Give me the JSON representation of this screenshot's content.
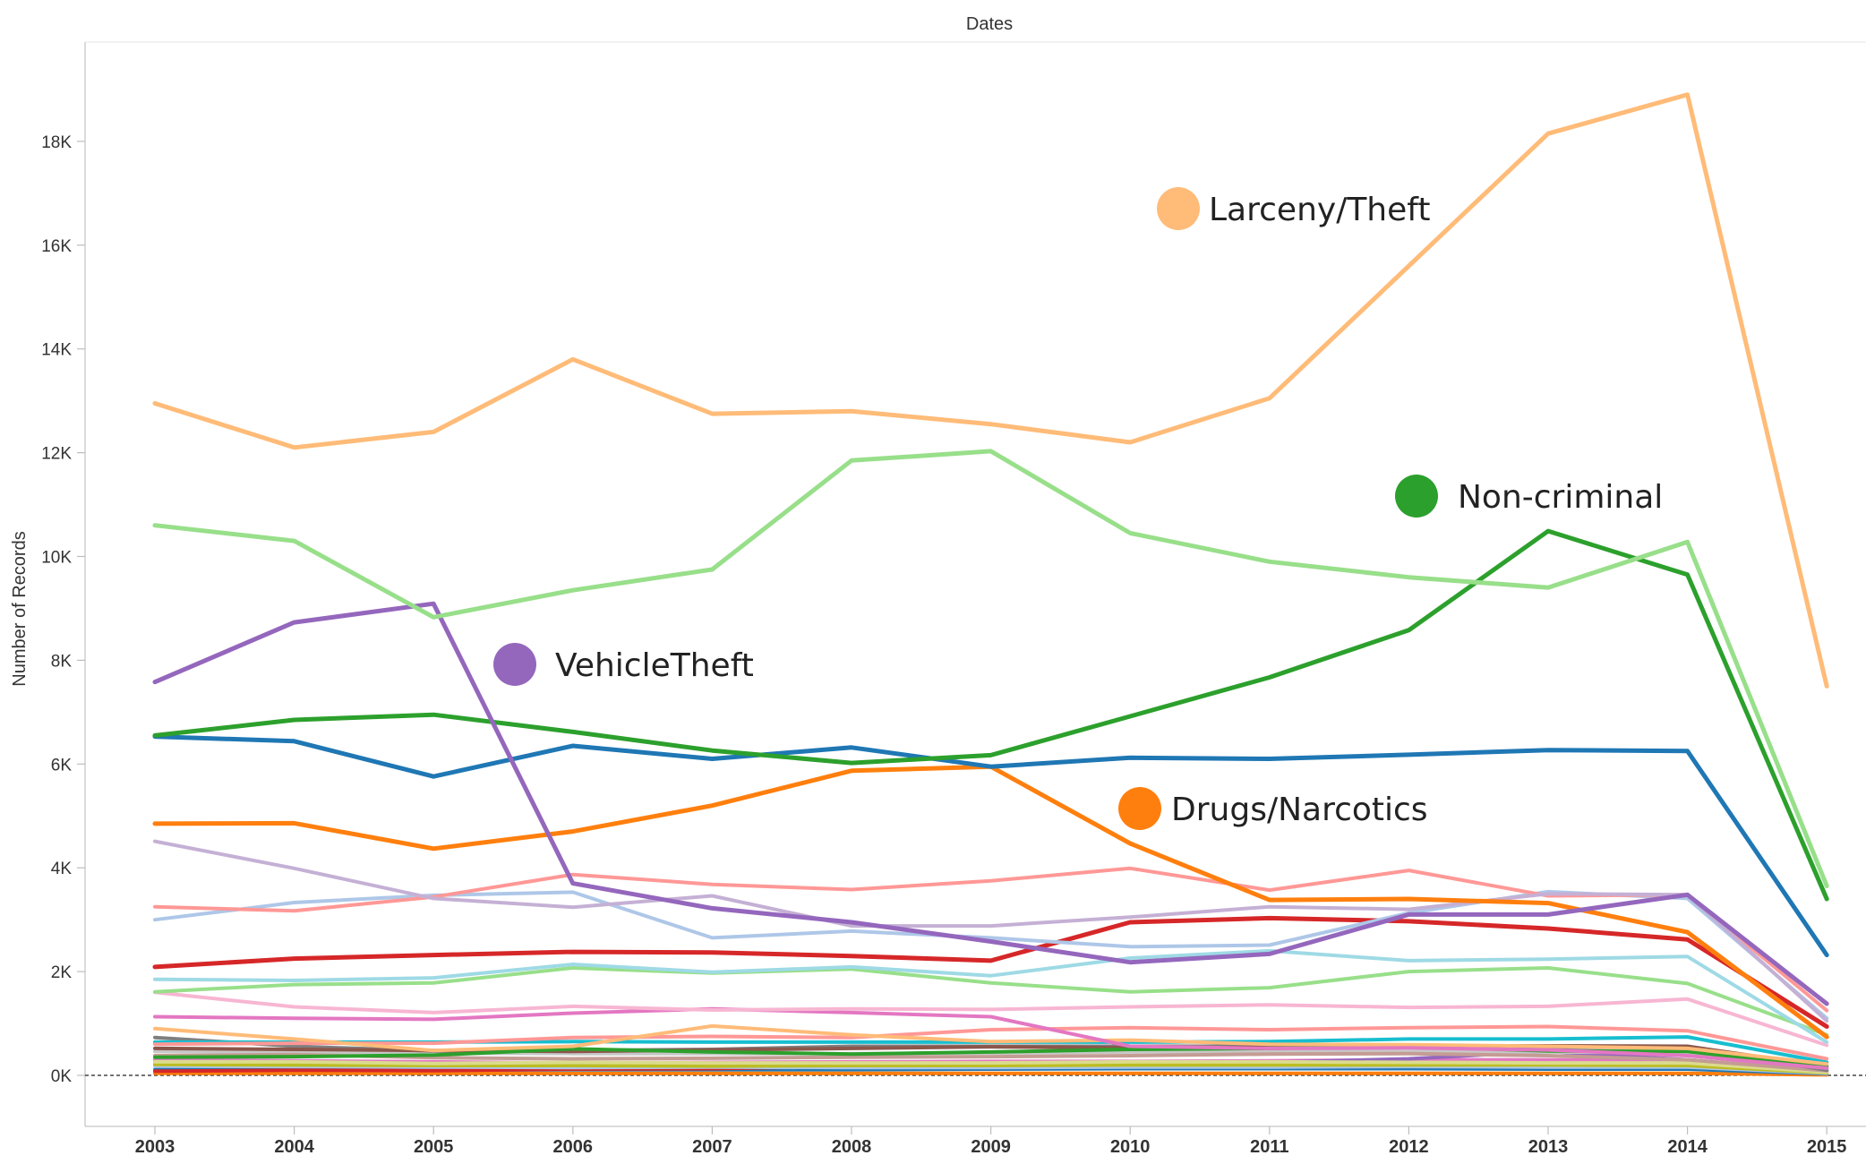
{
  "chart_data": {
    "type": "line",
    "title": "Dates",
    "xlabel": "",
    "ylabel": "Number of Records",
    "x": [
      "2003",
      "2004",
      "2005",
      "2006",
      "2007",
      "2008",
      "2009",
      "2010",
      "2011",
      "2012",
      "2013",
      "2014",
      "2015"
    ],
    "yticks": [
      "0K",
      "2K",
      "4K",
      "6K",
      "8K",
      "10K",
      "12K",
      "14K",
      "16K",
      "18K"
    ],
    "ylim": [
      -1000,
      19500
    ],
    "grid": false,
    "zero_line": "dashed",
    "series": [
      {
        "name": "Larceny/Theft",
        "color": "#ffbb78",
        "width": 5,
        "values": [
          12950,
          12100,
          12400,
          13800,
          12750,
          12800,
          12550,
          12200,
          13050,
          15600,
          18150,
          18900,
          7500
        ]
      },
      {
        "name": "",
        "color": "#98df8a",
        "width": 5,
        "values": [
          10600,
          10300,
          8830,
          9350,
          9750,
          11850,
          12030,
          10450,
          9900,
          9600,
          9400,
          10280,
          3650
        ]
      },
      {
        "name": "VehicleTheft",
        "color": "#9467bd",
        "width": 5,
        "values": [
          7580,
          8730,
          9090,
          3700,
          3220,
          2950,
          2580,
          2180,
          2340,
          3100,
          3100,
          3480,
          1380
        ]
      },
      {
        "name": "Non-criminal",
        "color": "#2ca02c",
        "width": 5,
        "values": [
          6550,
          6850,
          6950,
          6620,
          6260,
          6020,
          6170,
          6920,
          7670,
          8580,
          10490,
          9650,
          3400
        ]
      },
      {
        "name": "",
        "color": "#1f77b4",
        "width": 5,
        "values": [
          6530,
          6440,
          5760,
          6350,
          6100,
          6320,
          5950,
          6120,
          6100,
          6180,
          6270,
          6250,
          2320
        ]
      },
      {
        "name": "Drugs/Narcotics",
        "color": "#ff7f0e",
        "width": 5,
        "values": [
          4850,
          4860,
          4370,
          4700,
          5200,
          5870,
          5950,
          4470,
          3380,
          3400,
          3320,
          2760,
          740
        ]
      },
      {
        "name": "",
        "color": "#c5b0d5",
        "width": 4,
        "values": [
          4510,
          3990,
          3410,
          3240,
          3460,
          2880,
          2880,
          3050,
          3250,
          3200,
          3500,
          3480,
          1050
        ]
      },
      {
        "name": "",
        "color": "#ff9896",
        "width": 4,
        "values": [
          3250,
          3170,
          3440,
          3870,
          3680,
          3580,
          3750,
          3990,
          3570,
          3950,
          3460,
          3480,
          1250
        ]
      },
      {
        "name": "",
        "color": "#aec7e8",
        "width": 4,
        "values": [
          3000,
          3330,
          3470,
          3530,
          2650,
          2780,
          2650,
          2480,
          2510,
          3130,
          3540,
          3410,
          1100
        ]
      },
      {
        "name": "",
        "color": "#d62728",
        "width": 5,
        "values": [
          2090,
          2250,
          2320,
          2380,
          2370,
          2300,
          2210,
          2950,
          3030,
          2970,
          2830,
          2620,
          940
        ]
      },
      {
        "name": "",
        "color": "#9edae5",
        "width": 4,
        "values": [
          1850,
          1830,
          1880,
          2140,
          1990,
          2090,
          1920,
          2260,
          2400,
          2210,
          2240,
          2290,
          640
        ]
      },
      {
        "name": "",
        "color": "#98df8a",
        "width": 4,
        "values": [
          1610,
          1750,
          1780,
          2070,
          1970,
          2050,
          1780,
          1610,
          1690,
          2000,
          2070,
          1770,
          780
        ]
      },
      {
        "name": "",
        "color": "#f7b6d2",
        "width": 4,
        "values": [
          1600,
          1320,
          1210,
          1330,
          1260,
          1280,
          1270,
          1320,
          1360,
          1310,
          1330,
          1470,
          580
        ]
      },
      {
        "name": "",
        "color": "#e377c2",
        "width": 4,
        "values": [
          1130,
          1100,
          1080,
          1200,
          1280,
          1210,
          1130,
          560,
          520,
          530,
          490,
          380,
          140
        ]
      },
      {
        "name": "",
        "color": "#ffbb78",
        "width": 4,
        "values": [
          900,
          700,
          480,
          560,
          950,
          780,
          650,
          680,
          600,
          590,
          560,
          520,
          220
        ]
      },
      {
        "name": "",
        "color": "#ff9896",
        "width": 4,
        "values": [
          600,
          620,
          620,
          730,
          750,
          730,
          880,
          920,
          880,
          920,
          940,
          860,
          320
        ]
      },
      {
        "name": "",
        "color": "#17becf",
        "width": 4,
        "values": [
          640,
          640,
          640,
          650,
          640,
          640,
          640,
          640,
          650,
          700,
          700,
          740,
          250
        ]
      },
      {
        "name": "",
        "color": "#2ca02c",
        "width": 4,
        "values": [
          350,
          360,
          390,
          510,
          450,
          410,
          450,
          500,
          520,
          560,
          470,
          460,
          160
        ]
      },
      {
        "name": "",
        "color": "#8c564b",
        "width": 4,
        "values": [
          520,
          500,
          480,
          460,
          490,
          520,
          550,
          530,
          540,
          560,
          570,
          560,
          170
        ]
      },
      {
        "name": "",
        "color": "#7f7f7f",
        "width": 4,
        "values": [
          730,
          560,
          470,
          480,
          500,
          560,
          560,
          560,
          560,
          560,
          540,
          540,
          100
        ]
      },
      {
        "name": "",
        "color": "#c49c94",
        "width": 4,
        "values": [
          380,
          400,
          340,
          320,
          330,
          350,
          360,
          380,
          410,
          420,
          380,
          300,
          90
        ]
      },
      {
        "name": "",
        "color": "#c7c7c7",
        "width": 4,
        "values": [
          460,
          450,
          430,
          420,
          420,
          420,
          430,
          450,
          470,
          460,
          450,
          440,
          120
        ]
      },
      {
        "name": "",
        "color": "#dbdb8d",
        "width": 4,
        "values": [
          260,
          260,
          230,
          250,
          240,
          240,
          240,
          260,
          260,
          250,
          240,
          240,
          60
        ]
      },
      {
        "name": "",
        "color": "#bcbd22",
        "width": 4,
        "values": [
          210,
          200,
          190,
          190,
          180,
          190,
          190,
          200,
          200,
          200,
          200,
          190,
          50
        ]
      },
      {
        "name": "",
        "color": "#aec7e8",
        "width": 4,
        "values": [
          180,
          170,
          160,
          150,
          160,
          150,
          150,
          160,
          160,
          170,
          160,
          160,
          40
        ]
      },
      {
        "name": "",
        "color": "#9467bd",
        "width": 4,
        "values": [
          210,
          220,
          200,
          200,
          210,
          220,
          230,
          240,
          250,
          320,
          460,
          300,
          90
        ]
      },
      {
        "name": "",
        "color": "#e377c2",
        "width": 4,
        "values": [
          300,
          280,
          260,
          240,
          250,
          260,
          270,
          270,
          280,
          300,
          300,
          280,
          80
        ]
      },
      {
        "name": "",
        "color": "#d62728",
        "width": 4,
        "values": [
          80,
          100,
          90,
          120,
          130,
          180,
          230,
          250,
          260,
          280,
          280,
          250,
          70
        ]
      },
      {
        "name": "",
        "color": "#1f77b4",
        "width": 4,
        "values": [
          110,
          110,
          100,
          110,
          110,
          110,
          120,
          130,
          130,
          130,
          120,
          120,
          30
        ]
      },
      {
        "name": "",
        "color": "#ff7f0e",
        "width": 4,
        "values": [
          40,
          40,
          40,
          40,
          40,
          40,
          40,
          40,
          40,
          40,
          40,
          40,
          10
        ]
      }
    ],
    "annotations": [
      {
        "text": "Larceny/Theft",
        "color": "#ffbb78"
      },
      {
        "text": "Non-criminal",
        "color": "#2ca02c"
      },
      {
        "text": "VehicleTheft",
        "color": "#9467bd"
      },
      {
        "text": "Drugs/Narcotics",
        "color": "#ff7f0e"
      }
    ]
  }
}
